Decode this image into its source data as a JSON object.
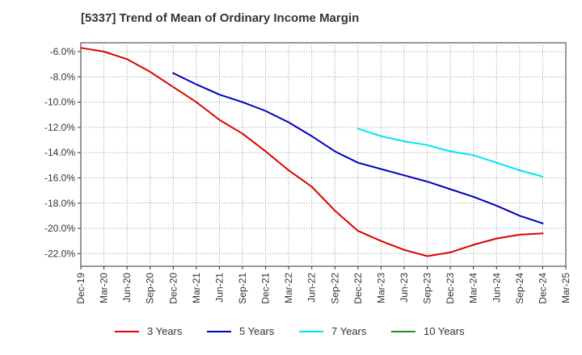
{
  "chart_data": {
    "type": "line",
    "title": "[5337]  Trend of Mean of Ordinary Income Margin",
    "xlabel": "",
    "ylabel": "",
    "x_ticks": [
      "Dec-19",
      "Mar-20",
      "Jun-20",
      "Sep-20",
      "Dec-20",
      "Mar-21",
      "Jun-21",
      "Sep-21",
      "Dec-21",
      "Mar-22",
      "Jun-22",
      "Sep-22",
      "Dec-22",
      "Mar-23",
      "Jun-23",
      "Sep-23",
      "Dec-23",
      "Mar-24",
      "Jun-24",
      "Sep-24",
      "Dec-24",
      "Mar-25"
    ],
    "y_ticks": [
      -6.0,
      -8.0,
      -10.0,
      -12.0,
      -14.0,
      -16.0,
      -18.0,
      -20.0,
      -22.0
    ],
    "y_tick_labels": [
      "-6.0%",
      "-8.0%",
      "-10.0%",
      "-12.0%",
      "-14.0%",
      "-16.0%",
      "-18.0%",
      "-20.0%",
      "-22.0%"
    ],
    "ylim": [
      -23.0,
      -5.3
    ],
    "grid": true,
    "legend_position": "bottom",
    "series": [
      {
        "name": "3 Years",
        "color": "#dd0000",
        "start_index": 0,
        "values": [
          -5.7,
          -6.0,
          -6.6,
          -7.6,
          -8.8,
          -10.0,
          -11.4,
          -12.5,
          -13.9,
          -15.4,
          -16.7,
          -18.6,
          -20.2,
          -21.0,
          -21.7,
          -22.2,
          -21.9,
          -21.3,
          -20.8,
          -20.5,
          -20.4
        ]
      },
      {
        "name": "5 Years",
        "color": "#0000bb",
        "start_index": 4,
        "values": [
          -7.7,
          -8.6,
          -9.4,
          -10.0,
          -10.7,
          -11.6,
          -12.7,
          -13.9,
          -14.8,
          -15.3,
          -15.8,
          -16.3,
          -16.9,
          -17.5,
          -18.2,
          -19.0,
          -19.6
        ]
      },
      {
        "name": "7 Years",
        "color": "#00e5ee",
        "start_index": 12,
        "values": [
          -12.1,
          -12.7,
          -13.1,
          -13.4,
          -13.9,
          -14.2,
          -14.8,
          -15.4,
          -15.9
        ]
      },
      {
        "name": "10 Years",
        "color": "#228b22",
        "start_index": 21,
        "values": []
      }
    ]
  }
}
